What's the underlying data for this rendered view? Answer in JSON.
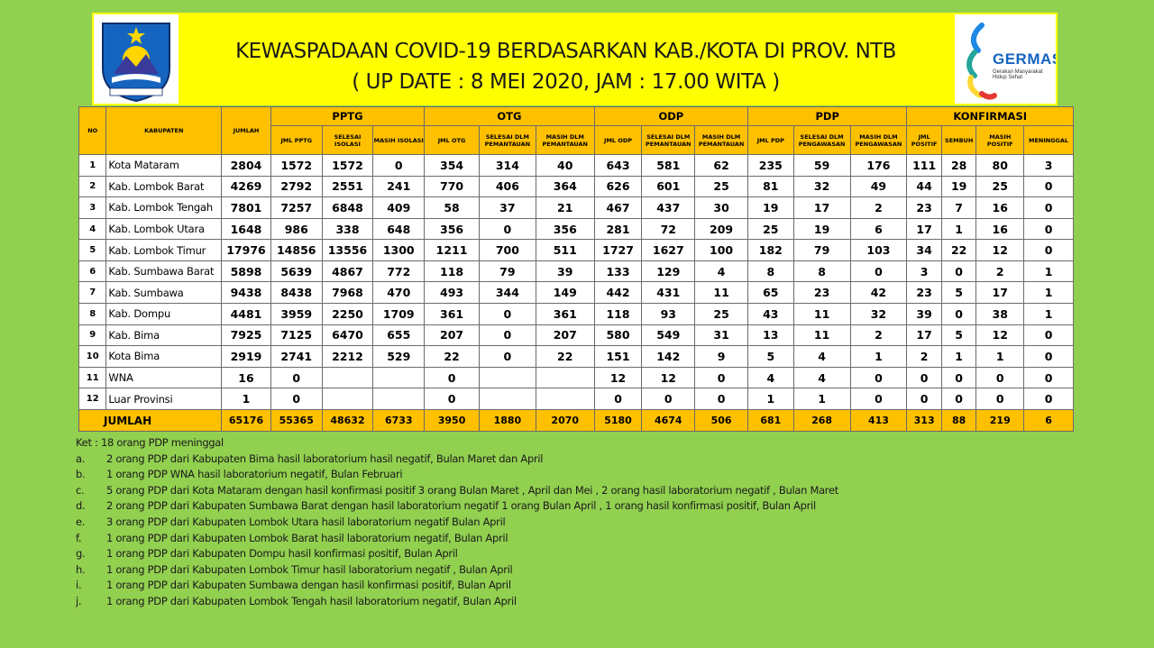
{
  "header": {
    "title_line1": "KEWASPADAAN COVID-19 BERDASARKAN KAB./KOTA DI PROV. NTB",
    "title_line2": "( UP DATE :  8 MEI  2020,  JAM : 17.00 WITA )",
    "right_logo": {
      "name": "GERMAS",
      "subtitle": "Gerakan Masyarakat Hidup Sehat"
    }
  },
  "table": {
    "headers": {
      "no": "NO",
      "kabupaten": "KABUPATEN",
      "jumlah": "JUMLAH"
    },
    "groups": [
      {
        "label": "PPTG",
        "subs": [
          "JML PPTG",
          "SELESAI ISOLASI",
          "MASIH ISOLASI"
        ]
      },
      {
        "label": "OTG",
        "subs": [
          "JML OTG",
          "SELESAI DLM PEMANTAUAN",
          "MASIH DLM PEMANTAUAN"
        ]
      },
      {
        "label": "ODP",
        "subs": [
          "JML ODP",
          "SELESAI DLM PEMANTAUAN",
          "MASIH DLM PEMANTAUAN"
        ]
      },
      {
        "label": "PDP",
        "subs": [
          "JML PDP",
          "SELESAI DLM PENGAWASAN",
          "MASIH DLM PENGAWASAN"
        ]
      },
      {
        "label": "KONFIRMASI",
        "subs": [
          "JML POSITIF",
          "SEMBUH",
          "MASIH POSITIF",
          "MENINGGAL"
        ]
      }
    ],
    "rows": [
      {
        "no": "1",
        "kab": "Kota Mataram",
        "cells": [
          "2804",
          "1572",
          "1572",
          "0",
          "354",
          "314",
          "40",
          "643",
          "581",
          "62",
          "235",
          "59",
          "176",
          "111",
          "28",
          "80",
          "3"
        ]
      },
      {
        "no": "2",
        "kab": "Kab. Lombok Barat",
        "cells": [
          "4269",
          "2792",
          "2551",
          "241",
          "770",
          "406",
          "364",
          "626",
          "601",
          "25",
          "81",
          "32",
          "49",
          "44",
          "19",
          "25",
          "0"
        ]
      },
      {
        "no": "3",
        "kab": "Kab. Lombok Tengah",
        "cells": [
          "7801",
          "7257",
          "6848",
          "409",
          "58",
          "37",
          "21",
          "467",
          "437",
          "30",
          "19",
          "17",
          "2",
          "23",
          "7",
          "16",
          "0"
        ]
      },
      {
        "no": "4",
        "kab": "Kab. Lombok  Utara",
        "cells": [
          "1648",
          "986",
          "338",
          "648",
          "356",
          "0",
          "356",
          "281",
          "72",
          "209",
          "25",
          "19",
          "6",
          "17",
          "1",
          "16",
          "0"
        ]
      },
      {
        "no": "5",
        "kab": "Kab. Lombok Timur",
        "cells": [
          "17976",
          "14856",
          "13556",
          "1300",
          "1211",
          "700",
          "511",
          "1727",
          "1627",
          "100",
          "182",
          "79",
          "103",
          "34",
          "22",
          "12",
          "0"
        ]
      },
      {
        "no": "6",
        "kab": "Kab. Sumbawa Barat",
        "cells": [
          "5898",
          "5639",
          "4867",
          "772",
          "118",
          "79",
          "39",
          "133",
          "129",
          "4",
          "8",
          "8",
          "0",
          "3",
          "0",
          "2",
          "1"
        ]
      },
      {
        "no": "7",
        "kab": "Kab. Sumbawa",
        "cells": [
          "9438",
          "8438",
          "7968",
          "470",
          "493",
          "344",
          "149",
          "442",
          "431",
          "11",
          "65",
          "23",
          "42",
          "23",
          "5",
          "17",
          "1"
        ]
      },
      {
        "no": "8",
        "kab": "Kab. Dompu",
        "cells": [
          "4481",
          "3959",
          "2250",
          "1709",
          "361",
          "0",
          "361",
          "118",
          "93",
          "25",
          "43",
          "11",
          "32",
          "39",
          "0",
          "38",
          "1"
        ]
      },
      {
        "no": "9",
        "kab": "Kab. Bima",
        "cells": [
          "7925",
          "7125",
          "6470",
          "655",
          "207",
          "0",
          "207",
          "580",
          "549",
          "31",
          "13",
          "11",
          "2",
          "17",
          "5",
          "12",
          "0"
        ]
      },
      {
        "no": "10",
        "kab": "Kota Bima",
        "cells": [
          "2919",
          "2741",
          "2212",
          "529",
          "22",
          "0",
          "22",
          "151",
          "142",
          "9",
          "5",
          "4",
          "1",
          "2",
          "1",
          "1",
          "0"
        ]
      },
      {
        "no": "11",
        "kab": "WNA",
        "cells": [
          "16",
          "0",
          "",
          "",
          "0",
          "",
          "",
          "12",
          "12",
          "0",
          "4",
          "4",
          "0",
          "0",
          "0",
          "0",
          "0"
        ]
      },
      {
        "no": "12",
        "kab": "Luar Provinsi",
        "cells": [
          "1",
          "0",
          "",
          "",
          "0",
          "",
          "",
          "0",
          "0",
          "0",
          "1",
          "1",
          "0",
          "0",
          "0",
          "0",
          "0"
        ]
      }
    ],
    "total": {
      "label": "JUMLAH",
      "cells": [
        "65176",
        "55365",
        "48632",
        "6733",
        "3950",
        "1880",
        "2070",
        "5180",
        "4674",
        "506",
        "681",
        "268",
        "413",
        "313",
        "88",
        "219",
        "6"
      ]
    }
  },
  "notes": {
    "ket": "Ket :  18 orang PDP meninggal",
    "items": [
      {
        "m": "a.",
        "t": "2  orang PDP dari Kabupaten Bima  hasil laboratorium  hasil negatif, Bulan Maret dan April"
      },
      {
        "m": "b.",
        "t": "1 orang  PDP WNA  hasil  laboratorium negatif, Bulan Februari"
      },
      {
        "m": "c.",
        "t": "5 orang PDP dari Kota Mataram  dengan hasil  konfirmasi positif 3 orang  Bulan Maret , April  dan Mei , 2 orang hasil  laboratorium negatif , Bulan Maret"
      },
      {
        "m": "d.",
        "t": "2 orang PDP dari Kabupaten Sumbawa Barat  dengan hasil laboratorium negatif  1 orang  Bulan April , 1 orang hasil konfirmasi positif, Bulan April"
      },
      {
        "m": "e.",
        "t": "3 orang PDP dari Kabupaten Lombok Utara  hasil laboratorium negatif Bulan April"
      },
      {
        "m": "f.",
        "t": "1 orang PDP dari Kabupaten Lombok Barat hasil laboratorium negatif, Bulan April"
      },
      {
        "m": "g.",
        "t": "1 orang PDP dari Kabupaten Dompu hasil konfirmasi positif, Bulan April"
      },
      {
        "m": "h.",
        "t": "1 orang PDP  dari Kabupaten Lombok Timur  hasil laboratorium negatif , Bulan April"
      },
      {
        "m": "i.",
        "t": "1 orang PDP dari Kabupaten Sumbawa  dengan hasil  konfirmasi positif, Bulan April"
      },
      {
        "m": "j.",
        "t": "1 orang PDP dari Kabupaten Lombok Tengah hasil laboratorium negatif, Bulan  April"
      }
    ]
  },
  "colors": {
    "background": "#92d050",
    "banner": "#ffff00",
    "table_header": "#ffc000"
  }
}
